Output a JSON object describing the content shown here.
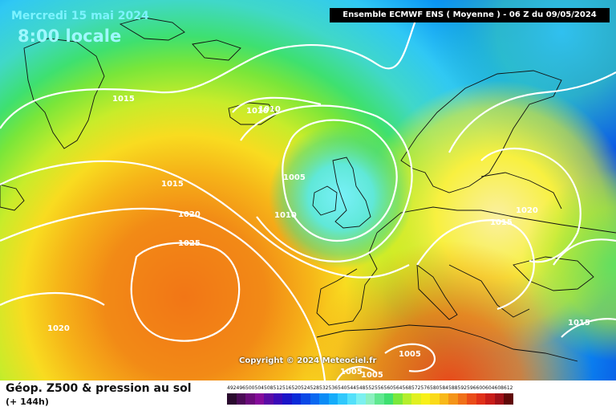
{
  "header": {
    "date": "Mercredi 15 mai 2024",
    "time": "8:00 locale",
    "model": "Ensemble ECMWF ENS  ( Moyenne )  -  06 Z du 09/05/2024"
  },
  "copyright": "Copyright © 2024 Meteociel.fr",
  "footer": {
    "title": "Géop. Z500 & pression au sol",
    "subtitle": "(+ 144h)"
  },
  "legend": {
    "values": [
      "492",
      "496",
      "500",
      "504",
      "508",
      "512",
      "516",
      "520",
      "524",
      "528",
      "532",
      "536",
      "540",
      "544",
      "548",
      "552",
      "556",
      "560",
      "564",
      "568",
      "572",
      "576",
      "580",
      "584",
      "588",
      "592",
      "596",
      "600",
      "604",
      "608",
      "612"
    ],
    "colors": [
      "#2a0a2e",
      "#4a0a55",
      "#6a0a7a",
      "#850a9a",
      "#5a0aa5",
      "#3a0ab8",
      "#1a14c8",
      "#0a2ad8",
      "#0a48e6",
      "#0a68f0",
      "#0a8cf6",
      "#14acfa",
      "#30c8fc",
      "#54e0fa",
      "#7cf0f0",
      "#8cf0c0",
      "#60e890",
      "#3ee070",
      "#7ae83c",
      "#b4ee2c",
      "#e0f020",
      "#f8f018",
      "#fada18",
      "#f8b818",
      "#f49418",
      "#f07018",
      "#ea4c18",
      "#e03018",
      "#c81c18",
      "#a01018",
      "#600808"
    ]
  },
  "map": {
    "pressure_labels": [
      "1015",
      "1010",
      "1010",
      "1005",
      "1015",
      "1010",
      "1020",
      "1025",
      "1020",
      "1015",
      "1020",
      "1015",
      "1005",
      "1005",
      "1005"
    ]
  }
}
